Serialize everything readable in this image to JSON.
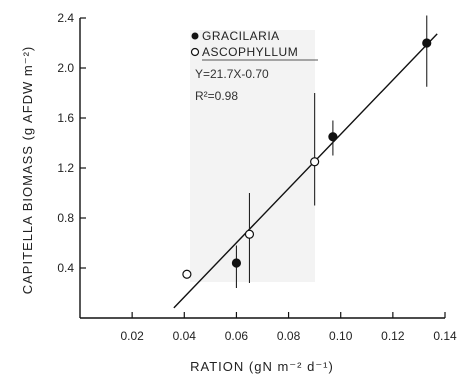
{
  "chart_data": {
    "type": "scatter",
    "title": "",
    "xlabel": "RATION (gN m⁻² d⁻¹)",
    "ylabel": "CAPITELLA BIOMASS (g AFDW m⁻²)",
    "xlim": [
      0,
      0.14
    ],
    "ylim": [
      0,
      2.4
    ],
    "xticks": [
      0.02,
      0.04,
      0.06,
      0.08,
      0.1,
      0.12,
      0.14
    ],
    "xtick_labels": [
      "0.02",
      "0.04",
      "0.06",
      "0.08",
      "0.10",
      "0.12",
      "0.14"
    ],
    "yticks": [
      0.4,
      0.8,
      1.2,
      1.6,
      2.0,
      2.4
    ],
    "ytick_labels": [
      "0.4",
      "0.8",
      "1.2",
      "1.6",
      "2.0",
      "2.4"
    ],
    "series": [
      {
        "name": "GRACILARIA",
        "marker": "filled-circle",
        "points": [
          {
            "x": 0.06,
            "y": 0.44,
            "err_low": 0.24,
            "err_high": 0.58
          },
          {
            "x": 0.097,
            "y": 1.45,
            "err_low": 1.3,
            "err_high": 1.58
          },
          {
            "x": 0.133,
            "y": 2.2,
            "err_low": 1.85,
            "err_high": 2.42
          }
        ]
      },
      {
        "name": "ASCOPHYLLUM",
        "marker": "open-circle",
        "points": [
          {
            "x": 0.041,
            "y": 0.35,
            "err_low": 0.35,
            "err_high": 0.35
          },
          {
            "x": 0.065,
            "y": 0.67,
            "err_low": 0.28,
            "err_high": 1.0
          },
          {
            "x": 0.09,
            "y": 1.25,
            "err_low": 0.9,
            "err_high": 1.8
          }
        ]
      }
    ],
    "fit_line": {
      "slope": 21.7,
      "intercept": -0.7,
      "x_range": [
        0.036,
        0.137
      ]
    },
    "equation": "Y=21.7X-0.70",
    "r_squared": "R²=0.98",
    "legend": "top-left"
  }
}
